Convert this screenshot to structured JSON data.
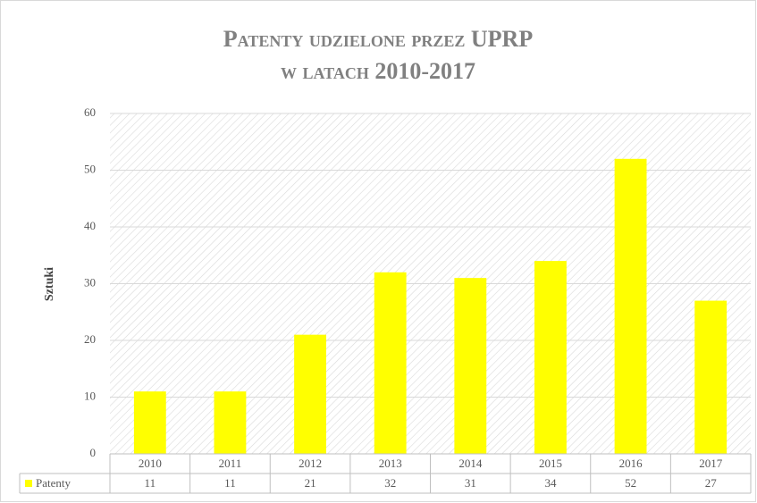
{
  "chart_data": {
    "type": "bar",
    "title": [
      "Patenty udzielone przez UPRP",
      "w latach 2010-2017"
    ],
    "y_label": "Sztuki",
    "categories": [
      "2010",
      "2011",
      "2012",
      "2013",
      "2014",
      "2015",
      "2016",
      "2017"
    ],
    "series": [
      {
        "name": "Patenty",
        "color": "#ffff00",
        "values": [
          11,
          11,
          21,
          32,
          31,
          34,
          52,
          27
        ]
      }
    ],
    "ylim": [
      0,
      60
    ],
    "yticks": [
      0,
      10,
      20,
      30,
      40,
      50,
      60
    ],
    "grid": true,
    "data_table": true
  }
}
